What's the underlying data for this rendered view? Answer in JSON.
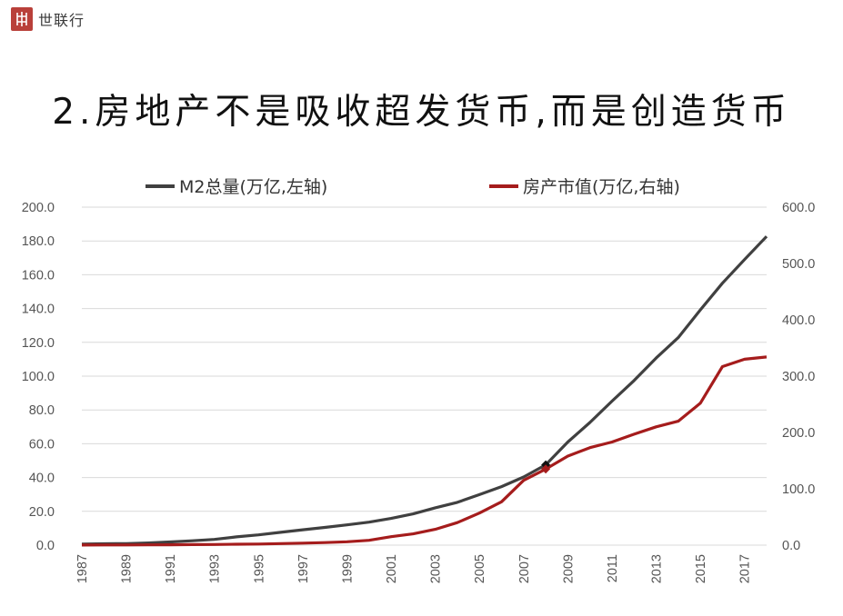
{
  "logo": {
    "text": "世联行",
    "icon": "seal-icon",
    "color": "#b9403a"
  },
  "title": "2.房地产不是吸收超发货币,而是创造货币",
  "chart_data": {
    "type": "line",
    "x": [
      1987,
      1988,
      1989,
      1990,
      1991,
      1992,
      1993,
      1994,
      1995,
      1996,
      1997,
      1998,
      1999,
      2000,
      2001,
      2002,
      2003,
      2004,
      2005,
      2006,
      2007,
      2008,
      2009,
      2010,
      2011,
      2012,
      2013,
      2014,
      2015,
      2016,
      2017,
      2018
    ],
    "x_tick_labels": [
      "1987",
      "1989",
      "1991",
      "1993",
      "1995",
      "1997",
      "1999",
      "2001",
      "2003",
      "2005",
      "2007",
      "2009",
      "2011",
      "2013",
      "2015",
      "2017"
    ],
    "series": [
      {
        "name": "M2总量(万亿,左轴)",
        "axis": "left",
        "color": "#404040",
        "values": [
          0.6,
          0.8,
          0.9,
          1.3,
          1.9,
          2.6,
          3.4,
          4.9,
          6.1,
          7.6,
          9.1,
          10.5,
          12.0,
          13.6,
          15.8,
          18.5,
          22.1,
          25.3,
          29.9,
          34.6,
          40.3,
          47.5,
          61.0,
          72.6,
          85.2,
          97.4,
          110.7,
          122.8,
          139.2,
          155.0,
          169.0,
          182.7
        ]
      },
      {
        "name": "房产市值(万亿,右轴)",
        "axis": "right",
        "color": "#a51c1c",
        "values": [
          0.2,
          0.3,
          0.4,
          0.5,
          0.7,
          0.9,
          1.2,
          1.6,
          2.0,
          2.7,
          3.5,
          4.5,
          6.0,
          8.5,
          15.0,
          20.0,
          28.0,
          40.0,
          57.0,
          77.0,
          115.0,
          135.0,
          158.0,
          173.0,
          183.0,
          197.0,
          210.0,
          220.0,
          252.0,
          317.0,
          330.0,
          334.0
        ]
      }
    ],
    "markers": [
      {
        "series": "M2总量(万亿,左轴)",
        "x": 2008,
        "y": 47.5,
        "color": "#111111"
      },
      {
        "series": "房产市值(万亿,右轴)",
        "x": 2008,
        "y": 135.0,
        "color": "#a51c1c"
      }
    ],
    "y_left": {
      "min": 0,
      "max": 200,
      "ticks": [
        "0.0",
        "20.0",
        "40.0",
        "60.0",
        "80.0",
        "100.0",
        "120.0",
        "140.0",
        "160.0",
        "180.0",
        "200.0"
      ]
    },
    "y_right": {
      "min": 0,
      "max": 600,
      "ticks": [
        "0.0",
        "100.0",
        "200.0",
        "300.0",
        "400.0",
        "500.0",
        "600.0"
      ]
    },
    "grid": true,
    "grid_color": "#d9d9d9",
    "legend_position": "top"
  }
}
